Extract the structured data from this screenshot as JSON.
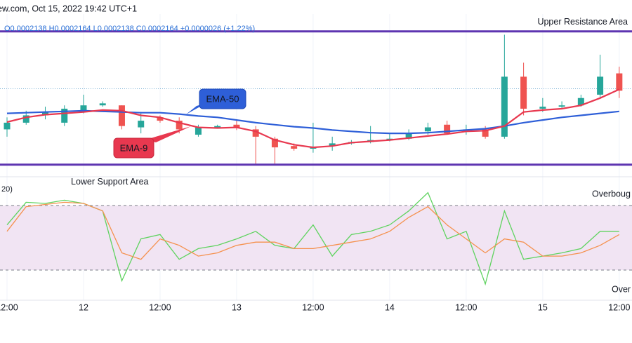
{
  "chart_data": [
    {
      "type": "candlestick",
      "title": "ew.com, Oct 15, 2022 19:42 UTC+1",
      "subtitle": "O0.0002138  H0.0002164  L0.0002138  C0.0002164  +0.0000026 (+1.22%)",
      "x": [
        12,
        15,
        18,
        21,
        24,
        27,
        30,
        33,
        36,
        39,
        42,
        45,
        48,
        51,
        54,
        57,
        60,
        63,
        66,
        69,
        72,
        75,
        78,
        81,
        84,
        87,
        90,
        93,
        96,
        99,
        102,
        105,
        108
      ],
      "open": [
        0.0002103,
        0.0002113,
        0.0002124,
        0.0002113,
        0.0002131,
        0.0002139,
        0.0002139,
        0.0002106,
        0.0002121,
        0.0002116,
        0.0002095,
        0.0002106,
        0.000211,
        0.0002103,
        0.0002089,
        0.0002078,
        0.0002074,
        0.0002078,
        0.0002082,
        0.0002084,
        0.0002087,
        0.0002089,
        0.00021,
        0.000211,
        0.00021,
        0.0002103,
        0.0002092,
        0.0002182,
        0.0002134,
        0.0002137,
        0.0002139,
        0.0002155,
        0.0002187
      ],
      "high": [
        0.0002121,
        0.0002131,
        0.0002137,
        0.0002139,
        0.0002155,
        0.0002145,
        0.0002139,
        0.0002129,
        0.0002124,
        0.0002121,
        0.000211,
        0.000211,
        0.0002116,
        0.0002108,
        0.0002092,
        0.0002082,
        0.0002113,
        0.0002092,
        0.0002087,
        0.0002108,
        0.0002097,
        0.0002103,
        0.0002113,
        0.0002116,
        0.000211,
        0.0002108,
        0.0002245,
        0.0002203,
        0.000215,
        0.0002145,
        0.0002155,
        0.0002215,
        0.0002197
      ],
      "low": [
        0.0002092,
        0.000211,
        0.0002118,
        0.0002108,
        0.0002127,
        0.0002137,
        0.0002103,
        0.0002097,
        0.0002113,
        0.0002097,
        0.0002092,
        0.0002104,
        0.0002102,
        0.000205,
        0.000205,
        0.0002071,
        0.0002068,
        0.0002071,
        0.000208,
        0.0002082,
        0.0002085,
        0.0002087,
        0.0002095,
        0.0002095,
        0.0002095,
        0.0002089,
        0.0002089,
        0.0002124,
        0.0002129,
        0.0002134,
        0.0002137,
        0.000215,
        0.000215
      ],
      "close": [
        0.0002113,
        0.0002124,
        0.0002129,
        0.0002134,
        0.0002139,
        0.0002142,
        0.0002108,
        0.0002116,
        0.0002116,
        0.0002103,
        0.0002106,
        0.0002108,
        0.0002105,
        0.0002092,
        0.0002076,
        0.0002074,
        0.0002076,
        0.0002082,
        0.0002084,
        0.0002087,
        0.0002089,
        0.0002097,
        0.0002106,
        0.0002097,
        0.0002103,
        0.0002092,
        0.0002182,
        0.0002134,
        0.0002137,
        0.0002139,
        0.000215,
        0.0002182,
        0.0002161
      ],
      "up_color": "#26a69a",
      "down_color": "#ef5350",
      "series": [
        {
          "name": "EMA-50",
          "color": "#2e5fd8",
          "values": [
            0.0002127,
            0.0002128,
            0.0002129,
            0.000213,
            0.0002131,
            0.000213,
            0.0002129,
            0.0002128,
            0.0002128,
            0.0002126,
            0.0002123,
            0.0002121,
            0.0002117,
            0.0002113,
            0.000211,
            0.0002107,
            0.0002105,
            0.0002102,
            0.00021,
            0.0002098,
            0.0002097,
            0.0002097,
            0.0002098,
            0.00021,
            0.0002102,
            0.0002104,
            0.0002108,
            0.0002113,
            0.0002117,
            0.0002121,
            0.0002124,
            0.0002127,
            0.000213
          ]
        },
        {
          "name": "EMA-9",
          "color": "#e8384f",
          "values": [
            0.0002114,
            0.0002121,
            0.0002125,
            0.0002127,
            0.0002129,
            0.0002132,
            0.0002131,
            0.0002124,
            0.0002121,
            0.0002113,
            0.0002106,
            0.0002105,
            0.0002106,
            0.00021,
            0.0002087,
            0.000208,
            0.0002076,
            0.0002078,
            0.0002083,
            0.0002085,
            0.0002087,
            0.000209,
            0.0002093,
            0.0002096,
            0.00021,
            0.0002101,
            0.0002108,
            0.0002129,
            0.0002132,
            0.0002134,
            0.0002139,
            0.000215,
            0.0002163
          ]
        }
      ],
      "levels": [
        {
          "label": "Upper Resistance Area",
          "value": 0.000225,
          "color": "#5e35b1"
        },
        {
          "label": "Lower Support Area",
          "value": 0.000205,
          "color": "#5e35b1"
        }
      ],
      "last_price": 0.0002164,
      "xlim": [
        10.9,
        110
      ],
      "ylim": [
        0.0002034,
        0.0002276
      ],
      "xticks": [
        {
          "value": 12,
          "label": "12:00"
        },
        {
          "value": 24,
          "label": "12"
        },
        {
          "value": 36,
          "label": "12:00"
        },
        {
          "value": 48,
          "label": "13"
        },
        {
          "value": 60,
          "label": "12:00"
        },
        {
          "value": 72,
          "label": "14"
        },
        {
          "value": 84,
          "label": "12:00"
        },
        {
          "value": 96,
          "label": "15"
        },
        {
          "value": 108,
          "label": "12:00"
        }
      ]
    },
    {
      "type": "line",
      "title": "20)",
      "x": [
        12,
        15,
        18,
        21,
        24,
        27,
        30,
        33,
        36,
        39,
        42,
        45,
        48,
        51,
        54,
        57,
        60,
        63,
        66,
        69,
        72,
        75,
        78,
        81,
        84,
        87,
        90,
        93,
        96,
        99,
        102,
        105,
        108
      ],
      "series": [
        {
          "color": "#5fd35f",
          "values": [
            62,
            83,
            82,
            85,
            82,
            75,
            10,
            49,
            53,
            30,
            40,
            43,
            49,
            56,
            43,
            40,
            62,
            33,
            53,
            56,
            62,
            75,
            92,
            49,
            56,
            7,
            75,
            30,
            33,
            36,
            40,
            56,
            56
          ]
        },
        {
          "color": "#f5914e",
          "values": [
            56,
            79,
            81,
            83,
            82,
            75,
            36,
            30,
            49,
            43,
            33,
            36,
            43,
            46,
            46,
            40,
            40,
            43,
            46,
            49,
            56,
            69,
            79,
            62,
            49,
            36,
            49,
            46,
            33,
            33,
            36,
            43,
            53
          ]
        }
      ],
      "bands": [
        {
          "value": 80,
          "label": "Overboug"
        },
        {
          "value": 20,
          "label": "Over"
        }
      ],
      "band_color": "#f1e4f3",
      "xlim": [
        10.9,
        110
      ],
      "ylim": [
        -9.3,
        104.8
      ]
    }
  ]
}
